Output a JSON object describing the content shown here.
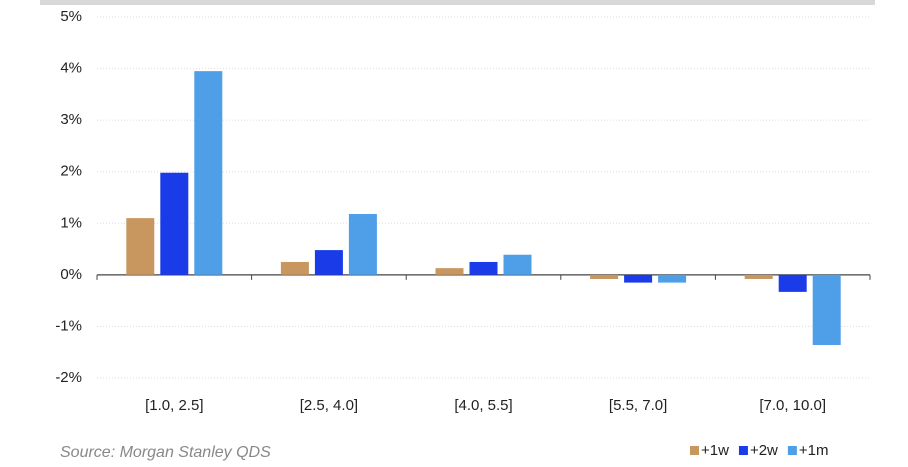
{
  "chart_data": {
    "type": "bar",
    "categories": [
      "[1.0, 2.5]",
      "[2.5, 4.0]",
      "[4.0, 5.5]",
      "[5.5, 7.0]",
      "[7.0, 10.0]"
    ],
    "series": [
      {
        "name": "+1w",
        "color": "#c8965f",
        "values": [
          1.1,
          0.25,
          0.13,
          -0.08,
          -0.08
        ]
      },
      {
        "name": "+2w",
        "color": "#1a3be8",
        "values": [
          1.98,
          0.48,
          0.25,
          -0.15,
          -0.33
        ]
      },
      {
        "name": "+1m",
        "color": "#4f9ee8",
        "values": [
          3.95,
          1.18,
          0.39,
          -0.15,
          -1.36
        ]
      }
    ],
    "ylim": [
      -2,
      5
    ],
    "yticks": [
      {
        "value": -2,
        "label": "-2%"
      },
      {
        "value": -1,
        "label": "-1%"
      },
      {
        "value": 0,
        "label": "0%"
      },
      {
        "value": 1,
        "label": "1%"
      },
      {
        "value": 2,
        "label": "2%"
      },
      {
        "value": 3,
        "label": "3%"
      },
      {
        "value": 4,
        "label": "4%"
      },
      {
        "value": 5,
        "label": "5%"
      }
    ],
    "grid": true,
    "legend": "bottom-right",
    "source": "Source: Morgan Stanley QDS"
  }
}
